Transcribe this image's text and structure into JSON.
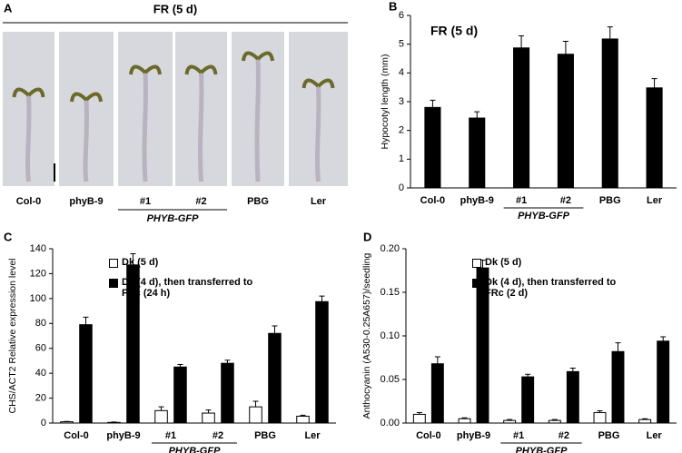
{
  "photo_panel": {
    "panel": "A",
    "title": "FR (5 d)",
    "labels": [
      "Col-0",
      "phyB-9",
      "#1",
      "#2",
      "PBG",
      "Ler"
    ],
    "group": "PHYB-GFP"
  },
  "chart_data": [
    {
      "type": "bar",
      "panel": "B",
      "title": "FR (5 d)",
      "ylabel": "Hypocotyl length (mm)",
      "categories": [
        "Col-0",
        "phyB-9",
        "#1",
        "#2",
        "PBG",
        "Ler"
      ],
      "group": {
        "label": "PHYB-GFP",
        "categories": [
          "#1",
          "#2"
        ]
      },
      "series": [
        {
          "color": "#000000",
          "values": [
            2.8,
            2.43,
            4.87,
            4.65,
            5.18,
            3.48
          ],
          "errors": [
            0.25,
            0.22,
            0.42,
            0.45,
            0.42,
            0.32
          ]
        }
      ],
      "ylim": [
        0,
        6
      ],
      "yticks": [
        0,
        1,
        2,
        3,
        4,
        5,
        6
      ]
    },
    {
      "type": "bar",
      "panel": "C",
      "ylabel": "CHS/ACT2 Relative expression level",
      "categories": [
        "Col-0",
        "phyB-9",
        "#1",
        "#2",
        "PBG",
        "Ler"
      ],
      "group": {
        "label": "PHYB-GFP",
        "categories": [
          "#1",
          "#2"
        ]
      },
      "series": [
        {
          "name": "Dk (5 d)",
          "color": "#ffffff",
          "values": [
            1,
            0.5,
            10,
            8,
            13,
            5.5
          ],
          "errors": [
            0.3,
            0.3,
            3,
            2.5,
            4.5,
            0.8
          ]
        },
        {
          "name": "Dk (4 d), then transferred to FRc (24 h)",
          "color": "#000000",
          "values": [
            79,
            127,
            45,
            48,
            72,
            97.5
          ],
          "errors": [
            6,
            9,
            2,
            2.5,
            6,
            4.5
          ]
        }
      ],
      "ylim": [
        0,
        140
      ],
      "yticks": [
        0,
        20,
        40,
        60,
        80,
        100,
        120,
        140
      ]
    },
    {
      "type": "bar",
      "panel": "D",
      "ylabel": "Anthocyanin (A530-0.25A657)/seedling",
      "categories": [
        "Col-0",
        "phyB-9",
        "#1",
        "#2",
        "PBG",
        "Ler"
      ],
      "group": {
        "label": "PHYB-GFP",
        "categories": [
          "#1",
          "#2"
        ]
      },
      "series": [
        {
          "name": "Dk (5 d)",
          "color": "#ffffff",
          "values": [
            0.01,
            0.005,
            0.003,
            0.003,
            0.012,
            0.004
          ],
          "errors": [
            0.002,
            0.001,
            0.001,
            0.001,
            0.002,
            0.001
          ]
        },
        {
          "name": "Dk (4 d), then transferred to FRc (2 d)",
          "color": "#000000",
          "values": [
            0.068,
            0.178,
            0.053,
            0.059,
            0.082,
            0.094
          ],
          "errors": [
            0.008,
            0.009,
            0.003,
            0.004,
            0.01,
            0.005
          ]
        }
      ],
      "ylim": [
        0,
        0.2
      ],
      "yticks": [
        {
          "value": 0,
          "label": "0.00"
        },
        {
          "value": 0.05,
          "label": "0.05"
        },
        {
          "value": 0.1,
          "label": "0.10"
        },
        {
          "value": 0.15,
          "label": "0.15"
        },
        {
          "value": 0.2,
          "label": "0.20"
        }
      ]
    }
  ]
}
